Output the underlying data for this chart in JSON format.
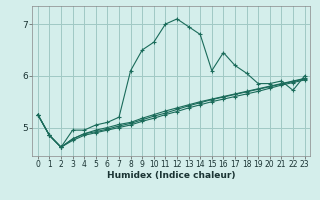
{
  "title": "",
  "xlabel": "Humidex (Indice chaleur)",
  "bg_color": "#d4eeeb",
  "grid_color": "#a0c8c4",
  "line_color": "#1a6b5a",
  "xlim": [
    -0.5,
    23.5
  ],
  "ylim": [
    4.45,
    7.35
  ],
  "yticks": [
    5,
    6,
    7
  ],
  "xticks": [
    0,
    1,
    2,
    3,
    4,
    5,
    6,
    7,
    8,
    9,
    10,
    11,
    12,
    13,
    14,
    15,
    16,
    17,
    18,
    19,
    20,
    21,
    22,
    23
  ],
  "series": [
    [
      5.25,
      4.85,
      4.62,
      4.95,
      4.95,
      5.05,
      5.1,
      5.2,
      6.1,
      6.5,
      6.65,
      7.0,
      7.1,
      6.95,
      6.8,
      6.1,
      6.45,
      6.2,
      6.05,
      5.85,
      5.85,
      5.9,
      5.72,
      6.0
    ],
    [
      5.25,
      4.85,
      4.62,
      4.78,
      4.88,
      4.95,
      5.0,
      5.06,
      5.1,
      5.18,
      5.25,
      5.32,
      5.38,
      5.44,
      5.5,
      5.55,
      5.6,
      5.65,
      5.7,
      5.75,
      5.8,
      5.85,
      5.9,
      5.95
    ],
    [
      5.25,
      4.85,
      4.62,
      4.78,
      4.88,
      4.92,
      4.97,
      5.03,
      5.08,
      5.15,
      5.22,
      5.28,
      5.35,
      5.42,
      5.48,
      5.54,
      5.59,
      5.64,
      5.69,
      5.74,
      5.79,
      5.84,
      5.89,
      5.94
    ],
    [
      5.25,
      4.85,
      4.62,
      4.75,
      4.85,
      4.9,
      4.95,
      5.0,
      5.05,
      5.12,
      5.18,
      5.25,
      5.31,
      5.38,
      5.44,
      5.5,
      5.55,
      5.6,
      5.65,
      5.7,
      5.76,
      5.82,
      5.87,
      5.92
    ]
  ]
}
